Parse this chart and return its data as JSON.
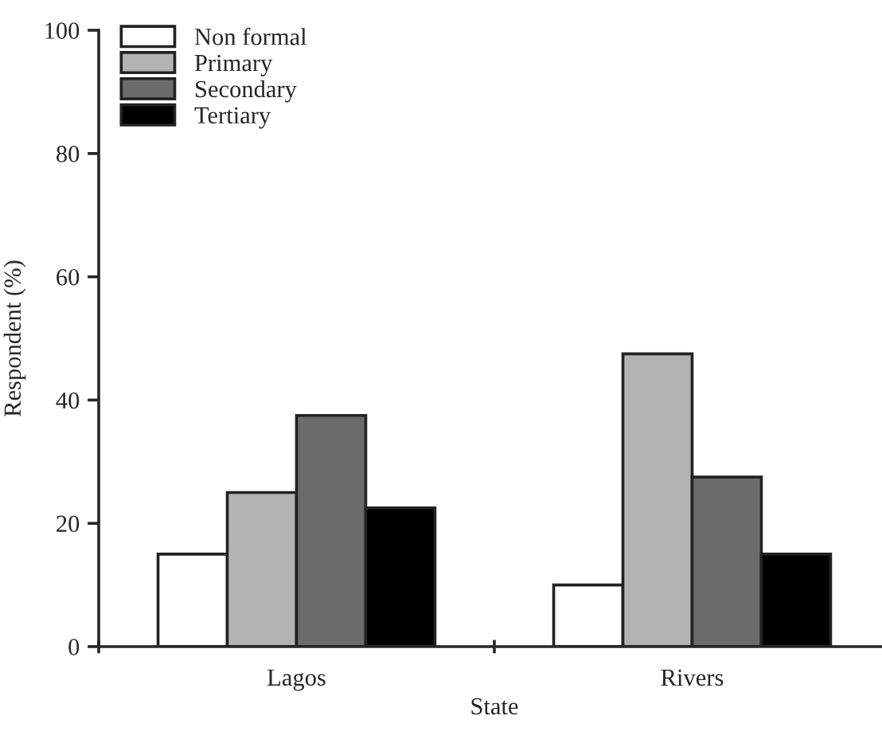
{
  "chart_data": {
    "type": "bar",
    "xlabel": "State",
    "ylabel": "Respondent (%)",
    "categories": [
      "Lagos",
      "Rivers"
    ],
    "series": [
      {
        "name": "Non formal",
        "color": "#ffffff",
        "values": [
          15,
          10
        ]
      },
      {
        "name": "Primary",
        "color": "#b3b3b3",
        "values": [
          25,
          47.5
        ]
      },
      {
        "name": "Secondary",
        "color": "#6b6b6b",
        "values": [
          37.5,
          27.5
        ]
      },
      {
        "name": "Tertiary",
        "color": "#000000",
        "values": [
          22.5,
          15
        ]
      }
    ],
    "ylim": [
      0,
      100
    ],
    "yticks": [
      0,
      20,
      40,
      60,
      80,
      100
    ],
    "grid": false,
    "legend": "top left"
  }
}
